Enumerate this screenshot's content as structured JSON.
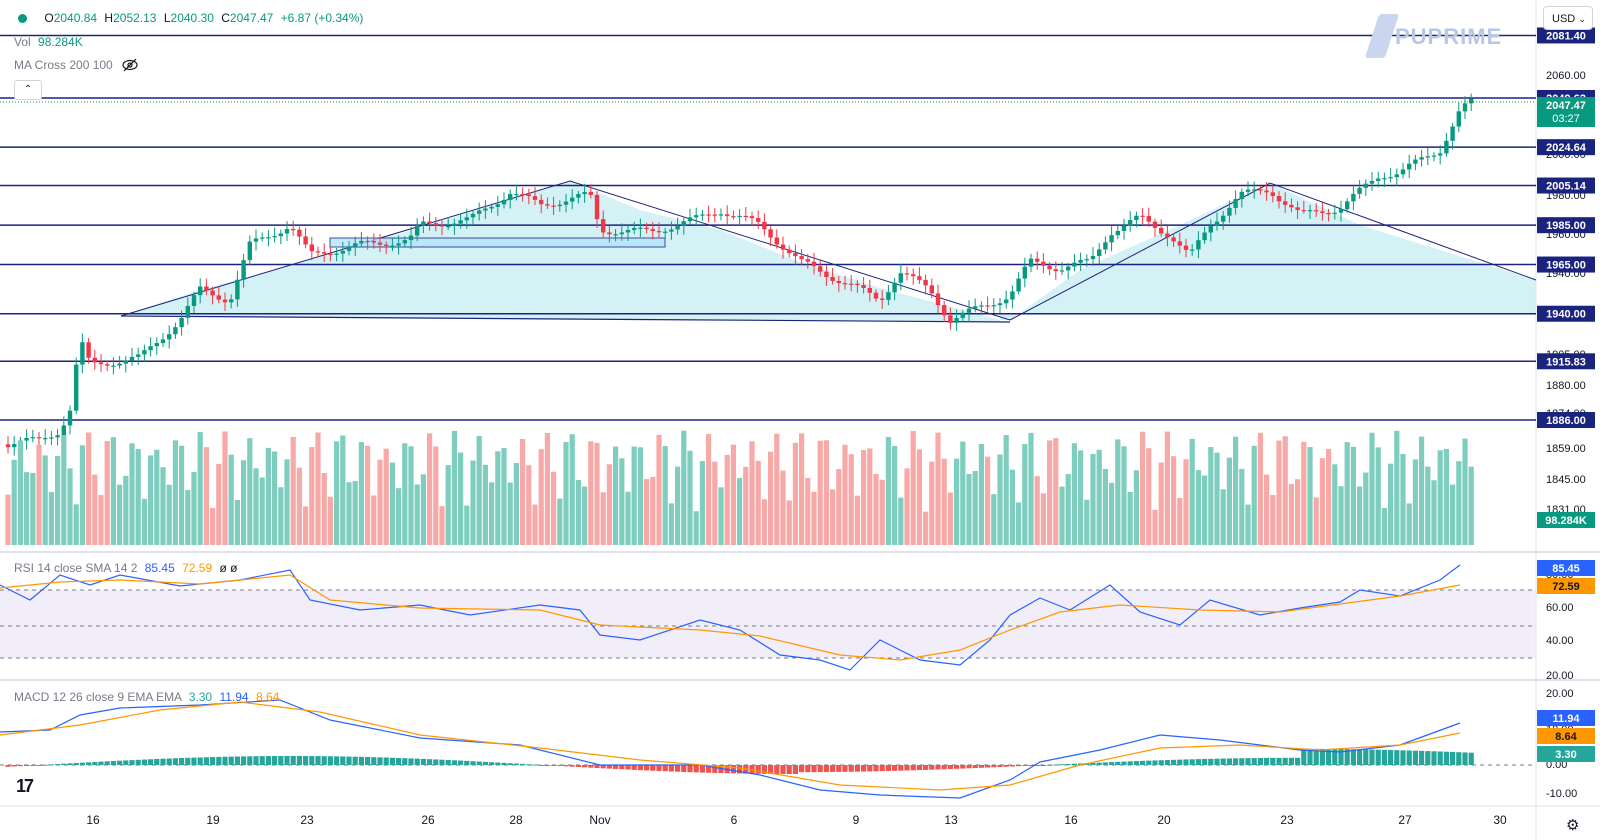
{
  "header": {
    "open_label": "O",
    "open": "2040.84",
    "high_label": "H",
    "high": "2052.13",
    "low_label": "L",
    "low": "2040.30",
    "close_label": "C",
    "close": "2047.47",
    "change": "+6.87 (+0.34%)",
    "vol_label": "Vol",
    "vol_value": "98.284K",
    "ma_label": "MA Cross 200 100",
    "currency": "USD",
    "watermark": "PUPRIME"
  },
  "indicators": {
    "rsi_label": "RSI 14 close SMA 14 2",
    "rsi_value": "85.45",
    "rsi_sma": "72.59",
    "rsi_extra": "ø ø",
    "macd_label": "MACD 12 26 close 9 EMA EMA",
    "macd_hist": "3.30",
    "macd_line": "11.94",
    "macd_signal": "8.64"
  },
  "colors": {
    "up": "#089981",
    "down": "#f23645",
    "level": "#1a237e",
    "pattern_fill": "#cdeef3",
    "rsi": "#2962ff",
    "sma": "#ff9800",
    "macd": "#2962ff",
    "signal": "#ff9800"
  },
  "icons": [
    "eye-off-icon",
    "chevron-up-icon",
    "chevron-down-icon",
    "settings-icon",
    "tradingview-logo"
  ],
  "chart_data": {
    "type": "candlestick",
    "price_axis_ticks": [
      "2060.00",
      "2040.00",
      "2020.00",
      "2000.00",
      "1980.00",
      "1960.00",
      "1940.00",
      "1920.00",
      "1905.00",
      "1880.00",
      "1874.00",
      "1859.00",
      "1845.00",
      "1831.00"
    ],
    "date_axis_ticks": [
      "16",
      "19",
      "23",
      "26",
      "28",
      "Nov",
      "6",
      "9",
      "13",
      "16",
      "20",
      "23",
      "27",
      "30"
    ],
    "levels": [
      2081.4,
      2049.62,
      2024.64,
      2005.14,
      1985.0,
      1965.0,
      1940.0,
      1915.83,
      1886.0
    ],
    "last_price": "2047.47",
    "countdown": "03:27",
    "volume_label": "98.284K",
    "rsi_ticks": [
      "80.00",
      "60.00",
      "40.00",
      "20.00"
    ],
    "rsi_value": "85.45",
    "rsi_sma": "72.59",
    "macd_ticks": [
      "20.00",
      "10.00",
      "0.00",
      "-10.00"
    ],
    "macd_line": "11.94",
    "macd_signal": "8.64",
    "macd_hist": "3.30"
  }
}
